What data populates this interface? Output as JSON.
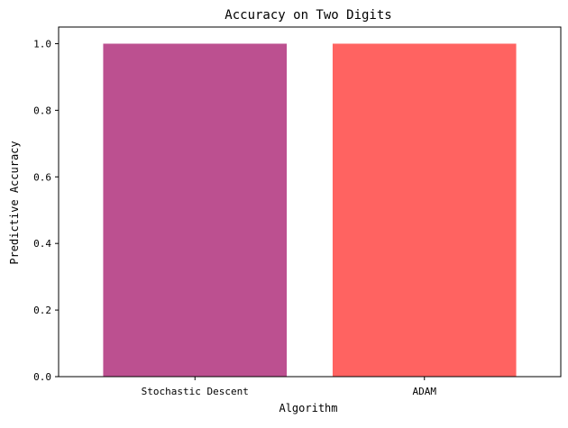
{
  "chart_data": {
    "type": "bar",
    "title": "Accuracy on Two Digits",
    "xlabel": "Algorithm",
    "ylabel": "Predictive Accuracy",
    "categories": [
      "Stochastic Descent",
      "ADAM"
    ],
    "values": [
      1.0,
      1.0
    ],
    "colors": [
      "#bc5090",
      "#ff6361"
    ],
    "ylim": [
      0,
      1.05
    ],
    "yticks": [
      "0.0",
      "0.2",
      "0.4",
      "0.6",
      "0.8",
      "1.0"
    ],
    "grid": false,
    "legend": "none"
  }
}
